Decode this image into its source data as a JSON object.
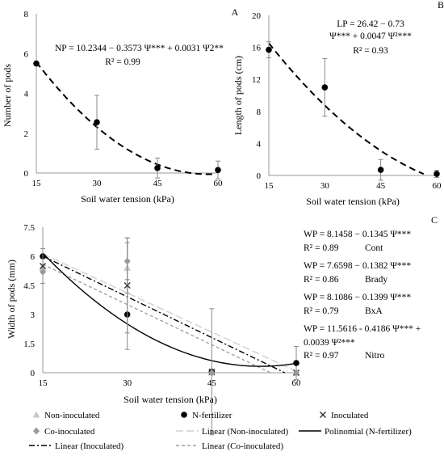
{
  "chart_data": [
    {
      "panel": "A",
      "type": "scatter",
      "xlabel": "Soil water tension (kPa)",
      "ylabel": "Number of pods",
      "xlim": [
        15,
        60
      ],
      "ylim": [
        0,
        8
      ],
      "xticks": [
        "15",
        "30",
        "45",
        "60"
      ],
      "yticks": [
        "0",
        "2",
        "4",
        "6",
        "8"
      ],
      "equation": [
        "NP = 10.2344 − 0.3573 Ψ*** + 0.0031 Ψ2**",
        "R² = 0.99"
      ],
      "points": [
        {
          "x": 15,
          "y": 5.5
        },
        {
          "x": 30,
          "y": 2.55,
          "err": 1.35
        },
        {
          "x": 45,
          "y": 0.25,
          "err": 0.5
        },
        {
          "x": 60,
          "y": 0.15,
          "err": 0.45
        }
      ],
      "fit": {
        "a": 10.2344,
        "b": -0.3573,
        "c": 0.0031,
        "x_end": 59
      }
    },
    {
      "panel": "B",
      "type": "scatter",
      "xlabel": "Soil water tension (kPa)",
      "ylabel": "Length of pods (cm)",
      "xlim": [
        15,
        60
      ],
      "ylim": [
        0,
        20
      ],
      "xticks": [
        "15",
        "30",
        "45",
        "60"
      ],
      "yticks": [
        "0",
        "4",
        "8",
        "12",
        "16",
        "20"
      ],
      "equation": [
        "LP = 26.42 − 0.73",
        "Ψ*** + 0.0047 Ψ²***",
        "R² = 0.93"
      ],
      "points": [
        {
          "x": 15,
          "y": 15.7,
          "err": 1.0
        },
        {
          "x": 30,
          "y": 11.0,
          "err": 3.6
        },
        {
          "x": 45,
          "y": 0.7,
          "err": 1.3
        },
        {
          "x": 60,
          "y": 0.2,
          "err": 0.45
        }
      ],
      "fit": {
        "a": 26.42,
        "b": -0.73,
        "c": 0.0047,
        "x_end": 56.5
      }
    },
    {
      "panel": "C",
      "type": "scatter",
      "xlabel": "Soil water tension (kPa)",
      "ylabel": "Width of pods (mm)",
      "xlim": [
        15,
        60
      ],
      "ylim": [
        0,
        7.5
      ],
      "xticks": [
        "15",
        "30",
        "45",
        "60"
      ],
      "yticks": [
        "0",
        "1.5",
        "3",
        "4.5",
        "6",
        "7.5"
      ],
      "equations": [
        {
          "lines": [
            "WP = 8.1458 − 0.1345 Ψ***",
            "R² = 0.89"
          ],
          "label": "Cont"
        },
        {
          "lines": [
            "WP = 7.6598 − 0.1382 Ψ***",
            "R² = 0.86"
          ],
          "label": "Brady"
        },
        {
          "lines": [
            "WP = 8.1086 − 0.1399 Ψ***",
            "R² = 0.79"
          ],
          "label": "BxA"
        },
        {
          "lines": [
            "WP = 11.5616 - 0.4186 Ψ*** +",
            "0.0039 Ψ²***",
            "R² = 0.97"
          ],
          "label": "Nitro"
        }
      ],
      "series": [
        {
          "name": "Non-inoculated",
          "marker": "triangle",
          "color": "#c8c8c8",
          "points": [
            {
              "x": 15,
              "y": 5.4
            },
            {
              "x": 30,
              "y": 5.4,
              "err": 1.3
            },
            {
              "x": 45,
              "y": 0,
              "err": 0
            },
            {
              "x": 60,
              "y": 0
            }
          ]
        },
        {
          "name": "N-fertilizer",
          "marker": "circle",
          "color": "#000000",
          "points": [
            {
              "x": 15,
              "y": 6.0
            },
            {
              "x": 30,
              "y": 3.0,
              "err": 1.8
            },
            {
              "x": 45,
              "y": 0.05
            },
            {
              "x": 60,
              "y": 0.5,
              "err": 0.85
            }
          ]
        },
        {
          "name": "Inoculated",
          "marker": "x",
          "color": "#333333",
          "points": [
            {
              "x": 15,
              "y": 5.5,
              "err": 0.9
            },
            {
              "x": 30,
              "y": 4.5,
              "err": 2.45
            },
            {
              "x": 45,
              "y": 0.05,
              "err": 3.25
            },
            {
              "x": 60,
              "y": 0
            }
          ]
        },
        {
          "name": "Co-inoculated",
          "marker": "diamond",
          "color": "#999999",
          "points": [
            {
              "x": 15,
              "y": 5.2
            },
            {
              "x": 30,
              "y": 5.75,
              "err": 1.2
            },
            {
              "x": 45,
              "y": 0
            },
            {
              "x": 60,
              "y": 0
            }
          ]
        }
      ],
      "lines": [
        {
          "name": "Linear (Non-inoculated)",
          "a": 8.1458,
          "b": -0.1345,
          "style": "longdash",
          "color": "#d0d0d0"
        },
        {
          "name": "Linear (Inoculated)",
          "a": 8.1086,
          "b": -0.1399,
          "style": "dashdot",
          "color": "#000000"
        },
        {
          "name": "Linear (Co-inoculated)",
          "a": 7.6598,
          "b": -0.1382,
          "style": "dash",
          "color": "#a0a0a0"
        },
        {
          "name": "Polinomial (N-fertilizer)",
          "a": 11.5616,
          "b": -0.4186,
          "c": 0.0039,
          "style": "solid",
          "color": "#000000"
        }
      ]
    }
  ],
  "legend": [
    {
      "label": "Non-inoculated",
      "key": "triangle"
    },
    {
      "label": "N-fertilizer",
      "key": "circle"
    },
    {
      "label": "Inoculated",
      "key": "x"
    },
    {
      "label": "Co-inoculated",
      "key": "diamond"
    },
    {
      "label": "Linear (Non-inoculated)",
      "key": "longdash"
    },
    {
      "label": "Polinomial (N-fertilizer)",
      "key": "solid"
    },
    {
      "label": "Linear (Inoculated)",
      "key": "dashdot"
    },
    {
      "label": "Linear (Co-inoculated)",
      "key": "dash"
    }
  ]
}
